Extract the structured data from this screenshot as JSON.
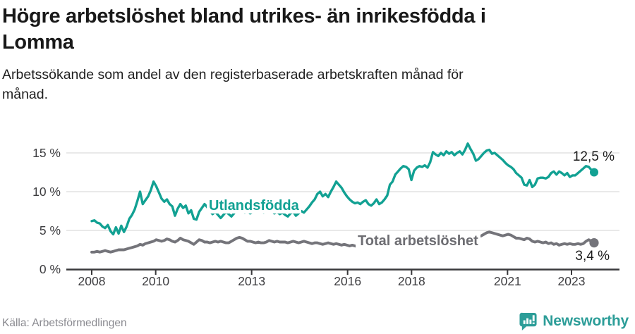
{
  "header": {
    "title_lines": [
      "Högre arbetslöshet bland utrikes- än inrikesfödda i",
      "Lomma"
    ],
    "subtitle_lines": [
      "Arbetssökande som andel av den registerbaserade arbetskraften månad för",
      "månad."
    ]
  },
  "chart_data": {
    "type": "line",
    "title": "Högre arbetslöshet bland utrikes- än inrikesfödda i Lomma",
    "subtitle": "Arbetssökande som andel av den registerbaserade arbetskraften månad för månad.",
    "unit": "%",
    "x_start": "2008-01",
    "x_end": "2023-08",
    "x_interval": "monthly",
    "x_ticks": [
      "2008",
      "2010",
      "2013",
      "2016",
      "2018",
      "2021",
      "2023"
    ],
    "x_tick_years": [
      2008,
      2010,
      2013,
      2016,
      2018,
      2021,
      2023
    ],
    "y_ticks": [
      0,
      5,
      10,
      15
    ],
    "y_tick_labels": [
      "0 %",
      "5 %",
      "10 %",
      "15 %"
    ],
    "ylim": [
      0,
      17
    ],
    "grid": "horizontal",
    "legend_position": "inline-labels",
    "series": [
      {
        "name": "Utlandsfödda",
        "color": "#12a193",
        "end_value": 12.5,
        "end_value_label": "12,5 %",
        "values": [
          6.2,
          6.3,
          6.0,
          5.9,
          5.5,
          5.3,
          5.7,
          4.9,
          4.5,
          5.4,
          4.6,
          5.6,
          4.8,
          5.5,
          6.5,
          7.0,
          7.7,
          8.8,
          10.0,
          8.4,
          8.9,
          9.4,
          10.2,
          11.3,
          10.7,
          9.9,
          9.1,
          8.7,
          9.0,
          8.4,
          8.1,
          6.9,
          7.8,
          8.4,
          7.9,
          8.2,
          7.2,
          7.6,
          6.5,
          6.4,
          7.4,
          7.9,
          8.4,
          8.0,
          7.5,
          7.1,
          7.4,
          7.0,
          6.6,
          7.0,
          7.4,
          7.1,
          6.8,
          7.2,
          7.8,
          8.0,
          7.6,
          7.3,
          7.5,
          7.2,
          7.4,
          7.7,
          7.9,
          7.6,
          7.3,
          7.5,
          7.8,
          7.5,
          7.2,
          7.4,
          7.1,
          7.3,
          7.0,
          6.8,
          7.2,
          7.4,
          6.9,
          7.2,
          7.5,
          7.3,
          7.7,
          8.1,
          8.6,
          9.0,
          9.7,
          10.0,
          9.4,
          9.7,
          9.3,
          10.0,
          10.6,
          11.3,
          10.9,
          10.5,
          9.9,
          9.4,
          9.0,
          8.7,
          8.5,
          8.6,
          8.4,
          8.7,
          8.9,
          8.4,
          8.2,
          8.5,
          9.0,
          8.4,
          8.6,
          9.0,
          9.5,
          10.9,
          11.3,
          12.2,
          12.6,
          13.0,
          13.3,
          13.2,
          12.9,
          11.5,
          12.7,
          13.1,
          13.3,
          13.2,
          13.4,
          13.1,
          13.8,
          15.1,
          14.8,
          14.6,
          15.0,
          14.7,
          15.2,
          14.9,
          15.1,
          14.7,
          15.0,
          15.2,
          14.8,
          15.4,
          16.2,
          15.5,
          14.9,
          14.0,
          14.2,
          14.6,
          15.0,
          15.3,
          15.4,
          14.9,
          15.0,
          14.7,
          14.4,
          14.1,
          13.7,
          13.4,
          13.2,
          12.9,
          12.4,
          12.1,
          11.8,
          10.9,
          10.8,
          11.5,
          10.6,
          10.9,
          11.7,
          11.8,
          11.8,
          11.7,
          11.9,
          12.4,
          12.6,
          12.2,
          12.6,
          12.4,
          12.1,
          12.4,
          11.9,
          12.1,
          12.1,
          12.4,
          12.7,
          13.0,
          13.3,
          13.2,
          12.8,
          12.5
        ]
      },
      {
        "name": "Total arbetslöshet",
        "color": "#74747a",
        "end_value": 3.4,
        "end_value_label": "3,4 %",
        "values": [
          2.2,
          2.2,
          2.3,
          2.2,
          2.3,
          2.4,
          2.3,
          2.2,
          2.3,
          2.4,
          2.5,
          2.5,
          2.5,
          2.6,
          2.7,
          2.8,
          2.9,
          3.0,
          3.2,
          3.1,
          3.3,
          3.4,
          3.5,
          3.6,
          3.8,
          3.7,
          3.6,
          3.7,
          3.9,
          3.8,
          3.6,
          3.5,
          3.7,
          4.0,
          3.8,
          3.7,
          3.6,
          3.4,
          3.2,
          3.5,
          3.8,
          3.7,
          3.5,
          3.5,
          3.4,
          3.5,
          3.6,
          3.5,
          3.6,
          3.5,
          3.4,
          3.4,
          3.6,
          3.8,
          4.0,
          4.1,
          4.0,
          3.8,
          3.6,
          3.6,
          3.5,
          3.4,
          3.5,
          3.4,
          3.4,
          3.5,
          3.7,
          3.6,
          3.5,
          3.6,
          3.5,
          3.5,
          3.5,
          3.4,
          3.5,
          3.6,
          3.5,
          3.4,
          3.5,
          3.6,
          3.5,
          3.4,
          3.3,
          3.4,
          3.4,
          3.3,
          3.2,
          3.3,
          3.4,
          3.3,
          3.2,
          3.3,
          3.2,
          3.1,
          3.2,
          3.1,
          3.0,
          3.1,
          3.0,
          2.9,
          3.0,
          3.1,
          3.0,
          2.9,
          3.0,
          3.1,
          3.0,
          3.0,
          3.0,
          2.9,
          3.0,
          3.1,
          3.0,
          3.1,
          3.2,
          3.1,
          3.2,
          3.3,
          3.2,
          3.3,
          3.3,
          3.2,
          3.3,
          3.4,
          3.3,
          3.4,
          3.5,
          3.4,
          3.5,
          3.6,
          3.5,
          3.6,
          3.6,
          3.5,
          3.6,
          3.7,
          3.6,
          3.7,
          3.8,
          3.9,
          3.8,
          3.9,
          4.0,
          4.1,
          4.2,
          4.3,
          4.5,
          4.7,
          4.8,
          4.7,
          4.6,
          4.5,
          4.4,
          4.3,
          4.4,
          4.5,
          4.4,
          4.2,
          4.0,
          4.0,
          3.9,
          3.8,
          4.0,
          3.9,
          3.6,
          3.5,
          3.6,
          3.5,
          3.4,
          3.5,
          3.3,
          3.4,
          3.2,
          3.3,
          3.1,
          3.2,
          3.3,
          3.2,
          3.3,
          3.2,
          3.2,
          3.3,
          3.2,
          3.3,
          3.6,
          3.8,
          3.6,
          3.4
        ]
      }
    ]
  },
  "footer": {
    "source": "Källa: Arbetsförmedlingen",
    "brand": "Newsworthy",
    "brand_color": "#2c9d98"
  }
}
